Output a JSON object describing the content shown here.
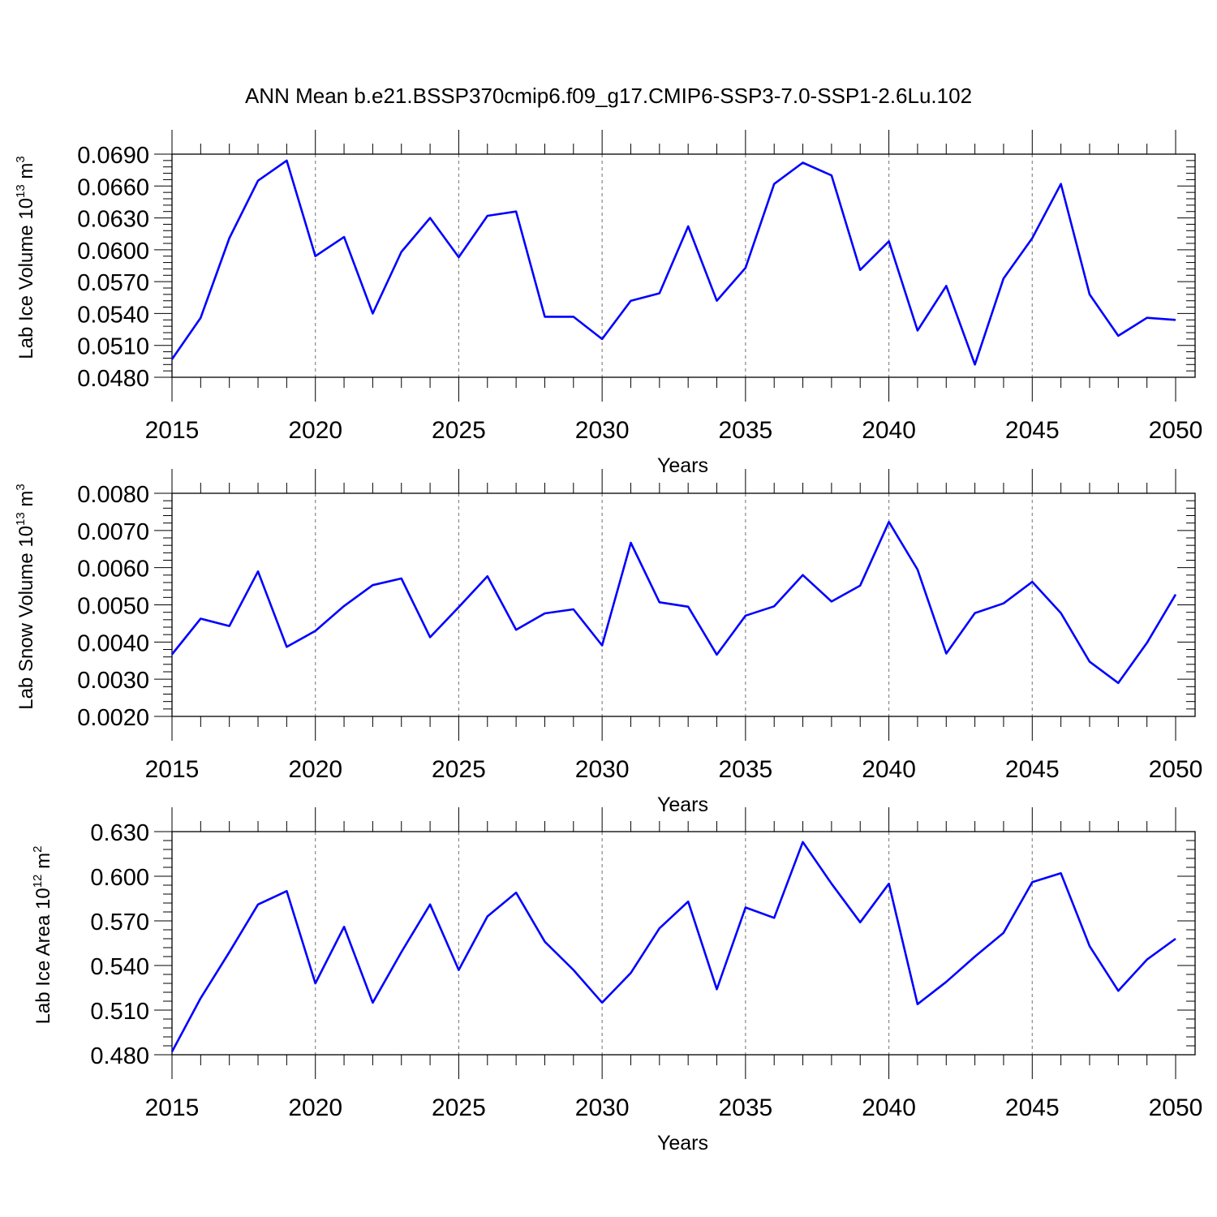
{
  "title": "ANN Mean b.e21.BSSP370cmip6.f09_g17.CMIP6-SSP3-7.0-SSP1-2.6Lu.102",
  "colors": {
    "series": "#0000ff",
    "axis": "#000000",
    "grid": "#888888"
  },
  "chart_data": [
    {
      "type": "line",
      "xlabel": "Years",
      "ylabel": {
        "prefix": "Lab Ice Volume 10",
        "exp": "13",
        "unit": " m",
        "unit_exp": "3"
      },
      "xlim": [
        2015,
        2050
      ],
      "ylim": [
        0.048,
        0.069
      ],
      "x_ticks": [
        "2015",
        "2020",
        "2025",
        "2030",
        "2035",
        "2040",
        "2045",
        "2050"
      ],
      "y_ticks": [
        "0.0480",
        "0.0510",
        "0.0540",
        "0.0570",
        "0.0600",
        "0.0630",
        "0.0660",
        "0.0690"
      ],
      "grid": "vertical dashed at major x ticks",
      "x": [
        2015,
        2016,
        2017,
        2018,
        2019,
        2020,
        2021,
        2022,
        2023,
        2024,
        2025,
        2026,
        2027,
        2028,
        2029,
        2030,
        2031,
        2032,
        2033,
        2034,
        2035,
        2036,
        2037,
        2038,
        2039,
        2040,
        2041,
        2042,
        2043,
        2044,
        2045,
        2046,
        2047,
        2048,
        2049,
        2050
      ],
      "values": [
        0.0497,
        0.0536,
        0.0611,
        0.0665,
        0.0684,
        0.0594,
        0.0612,
        0.054,
        0.0598,
        0.063,
        0.0593,
        0.0632,
        0.0636,
        0.0537,
        0.0537,
        0.0516,
        0.0552,
        0.0559,
        0.0622,
        0.0552,
        0.0583,
        0.0662,
        0.0682,
        0.067,
        0.0581,
        0.0608,
        0.0524,
        0.0566,
        0.0492,
        0.0573,
        0.0611,
        0.0662,
        0.0558,
        0.0519,
        0.0536,
        0.0534
      ]
    },
    {
      "type": "line",
      "xlabel": "Years",
      "ylabel": {
        "prefix": "Lab Snow Volume 10",
        "exp": "13",
        "unit": " m",
        "unit_exp": "3"
      },
      "xlim": [
        2015,
        2050
      ],
      "ylim": [
        0.002,
        0.008
      ],
      "x_ticks": [
        "2015",
        "2020",
        "2025",
        "2030",
        "2035",
        "2040",
        "2045",
        "2050"
      ],
      "y_ticks": [
        "0.0020",
        "0.0030",
        "0.0040",
        "0.0050",
        "0.0060",
        "0.0070",
        "0.0080"
      ],
      "grid": "vertical dashed at major x ticks",
      "x": [
        2015,
        2016,
        2017,
        2018,
        2019,
        2020,
        2021,
        2022,
        2023,
        2024,
        2025,
        2026,
        2027,
        2028,
        2029,
        2030,
        2031,
        2032,
        2033,
        2034,
        2035,
        2036,
        2037,
        2038,
        2039,
        2040,
        2041,
        2042,
        2043,
        2044,
        2045,
        2046,
        2047,
        2048,
        2049,
        2050
      ],
      "values": [
        0.00367,
        0.00463,
        0.00443,
        0.0059,
        0.00387,
        0.0043,
        0.00497,
        0.00553,
        0.00571,
        0.00413,
        0.00494,
        0.00577,
        0.00433,
        0.00477,
        0.00488,
        0.00391,
        0.00667,
        0.00507,
        0.00495,
        0.00366,
        0.00471,
        0.00496,
        0.0058,
        0.00509,
        0.00552,
        0.00723,
        0.00595,
        0.00369,
        0.00478,
        0.00504,
        0.00562,
        0.00478,
        0.00347,
        0.0029,
        0.00398,
        0.00528
      ]
    },
    {
      "type": "line",
      "xlabel": "Years",
      "ylabel": {
        "prefix": "Lab Ice Area 10",
        "exp": "12",
        "unit": " m",
        "unit_exp": "2"
      },
      "xlim": [
        2015,
        2050
      ],
      "ylim": [
        0.48,
        0.63
      ],
      "x_ticks": [
        "2015",
        "2020",
        "2025",
        "2030",
        "2035",
        "2040",
        "2045",
        "2050"
      ],
      "y_ticks": [
        "0.480",
        "0.510",
        "0.540",
        "0.570",
        "0.600",
        "0.630"
      ],
      "grid": "vertical dashed at major x ticks",
      "x": [
        2015,
        2016,
        2017,
        2018,
        2019,
        2020,
        2021,
        2022,
        2023,
        2024,
        2025,
        2026,
        2027,
        2028,
        2029,
        2030,
        2031,
        2032,
        2033,
        2034,
        2035,
        2036,
        2037,
        2038,
        2039,
        2040,
        2041,
        2042,
        2043,
        2044,
        2045,
        2046,
        2047,
        2048,
        2049,
        2050
      ],
      "values": [
        0.482,
        0.518,
        0.549,
        0.581,
        0.59,
        0.528,
        0.566,
        0.515,
        0.549,
        0.581,
        0.537,
        0.573,
        0.589,
        0.556,
        0.537,
        0.515,
        0.535,
        0.565,
        0.583,
        0.524,
        0.579,
        0.572,
        0.623,
        0.595,
        0.569,
        0.595,
        0.514,
        0.529,
        0.546,
        0.562,
        0.596,
        0.602,
        0.553,
        0.523,
        0.544,
        0.558
      ]
    }
  ]
}
